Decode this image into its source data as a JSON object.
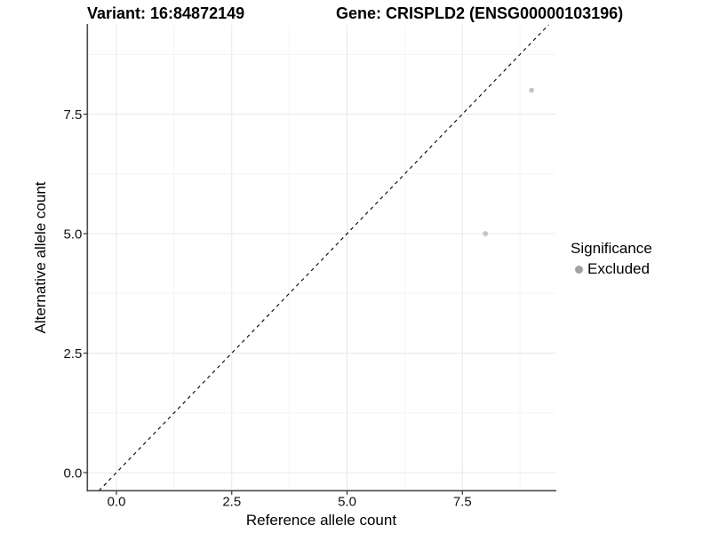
{
  "chart_data": {
    "type": "scatter",
    "titles": {
      "left": "Variant: 16:84872149",
      "right": "Gene: CRISPLD2 (ENSG00000103196)"
    },
    "xlabel": "Reference allele count",
    "ylabel": "Alternative allele count",
    "x_ticks": [
      0,
      2.5,
      5,
      7.5
    ],
    "x_tick_labels": [
      "0.0",
      "2.5",
      "5.0",
      "7.5"
    ],
    "y_ticks": [
      0,
      2.5,
      5,
      7.5
    ],
    "y_tick_labels": [
      "0.0",
      "2.5",
      "5.0",
      "7.5"
    ],
    "x_minor_ticks": [
      1.25,
      3.75,
      6.25,
      8.75
    ],
    "y_minor_ticks": [
      1.25,
      3.75,
      6.25,
      8.75
    ],
    "xlim": [
      -0.63,
      9.52
    ],
    "ylim": [
      -0.38,
      9.37
    ],
    "grid": "major+minor",
    "identity_line": {
      "slope": 1,
      "intercept": 0,
      "style": "dashed",
      "color": "#000000"
    },
    "series": [
      {
        "name": "Excluded",
        "color": "#c4c4c4",
        "points": [
          {
            "x": 8,
            "y": 5
          },
          {
            "x": 9,
            "y": 8
          }
        ]
      }
    ],
    "point_radius": 2.9,
    "legend": {
      "title": "Significance",
      "position": "right",
      "items": [
        {
          "label": "Excluded",
          "color": "#a0a0a0"
        }
      ]
    }
  }
}
